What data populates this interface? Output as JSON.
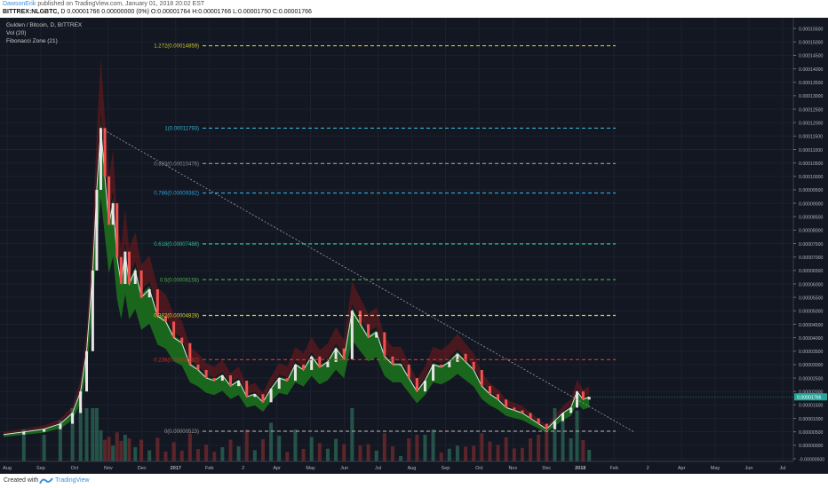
{
  "header": {
    "author": "DawsonErik",
    "published_text": "published on TradingView.com, January 01, 2018 20:02 EST",
    "symbol": "BITTREX:NLGBTC,",
    "ohlc_text": "D  0.00001766 0.00000000 (0%) O:0.00001764 H:0.00001766 L:0.00001750 C:0.00001766"
  },
  "legend": {
    "title": "Gulden / Bitcoin, D, BITTREX",
    "vol": "Vol (20)",
    "fib": "Fibonacci Zone (21)"
  },
  "footer": {
    "created_with": "Created with",
    "brand": "TradingView"
  },
  "colors": {
    "background": "#131722",
    "up": "#e6e6e6",
    "down": "#ef5350",
    "zone_green": "#1b7a1b",
    "zone_red": "#8b1a1a",
    "trendline": "#9aa0aa"
  },
  "chart_data": {
    "type": "line",
    "x_ticks": [
      "Aug",
      "Sep",
      "Oct",
      "Nov",
      "Dec",
      "2017",
      "Feb",
      "2",
      "Apr",
      "May",
      "Jun",
      "Jul",
      "Aug",
      "Sep",
      "Oct",
      "Nov",
      "Dec",
      "2018",
      "Feb",
      "2",
      "Apr",
      "May",
      "Jun",
      "Jul"
    ],
    "y_ticks": [
      "0.00015500",
      "0.00015000",
      "0.00014500",
      "0.00014000",
      "0.00013500",
      "0.00013000",
      "0.00012500",
      "0.00012000",
      "0.00011500",
      "0.00011000",
      "0.00010500",
      "0.00010000",
      "0.00009500",
      "0.00009000",
      "0.00008500",
      "0.00008000",
      "0.00007500",
      "0.00007000",
      "0.00006500",
      "0.00006000",
      "0.00005500",
      "0.00005000",
      "0.00004500",
      "0.00004000",
      "0.00003500",
      "0.00003000",
      "0.00002500",
      "0.00002000",
      "0.00001500",
      "0.00001000",
      "0.00000500",
      "0.00000000",
      "-0.00000500"
    ],
    "ylim": [
      -6e-06,
      0.000159
    ],
    "fib_levels": [
      {
        "label": "1.272(0.00014859)",
        "value": 0.00014859,
        "color": "#c8c832"
      },
      {
        "label": "1(0.00011793)",
        "value": 0.00011793,
        "color": "#36b1c8"
      },
      {
        "label": "0.883(0.00010476)",
        "value": 0.00010476,
        "color": "#8c8c8c"
      },
      {
        "label": "0.786(0.00009382)",
        "value": 9.382e-05,
        "color": "#2aa3d6"
      },
      {
        "label": "0.618(0.00007488)",
        "value": 7.488e-05,
        "color": "#2fbf9c"
      },
      {
        "label": "0.5(0.00006158)",
        "value": 6.158e-05,
        "color": "#4caf50"
      },
      {
        "label": "0.382(0.00004828)",
        "value": 4.828e-05,
        "color": "#d8d832"
      },
      {
        "label": "0.236(0.00003182)",
        "value": 3.182e-05,
        "color": "#c8322d"
      },
      {
        "label": "0(0.00000523)",
        "value": 5.23e-06,
        "color": "#9a9a9a"
      }
    ],
    "price_series": {
      "name": "NLGBTC",
      "points": [
        [
          0,
          4e-06
        ],
        [
          10,
          5e-06
        ],
        [
          20,
          6e-06
        ],
        [
          28,
          8e-06
        ],
        [
          34,
          1.2e-05
        ],
        [
          38,
          2e-05
        ],
        [
          41,
          3.5e-05
        ],
        [
          44,
          6.5e-05
        ],
        [
          46,
          9.5e-05
        ],
        [
          48,
          0.000118
        ],
        [
          50,
          0.0001
        ],
        [
          52,
          8.2e-05
        ],
        [
          54,
          9e-05
        ],
        [
          56,
          7e-05
        ],
        [
          58,
          6e-05
        ],
        [
          60,
          7.2e-05
        ],
        [
          62,
          6e-05
        ],
        [
          65,
          6.5e-05
        ],
        [
          68,
          5.5e-05
        ],
        [
          72,
          5.8e-05
        ],
        [
          76,
          4.8e-05
        ],
        [
          80,
          4.6e-05
        ],
        [
          84,
          4e-05
        ],
        [
          88,
          3.8e-05
        ],
        [
          92,
          3e-05
        ],
        [
          96,
          2.8e-05
        ],
        [
          100,
          2.5e-05
        ],
        [
          104,
          2.4e-05
        ],
        [
          108,
          2.6e-05
        ],
        [
          112,
          2.2e-05
        ],
        [
          116,
          2.4e-05
        ],
        [
          120,
          1.8e-05
        ],
        [
          124,
          1.9e-05
        ],
        [
          128,
          1.6e-05
        ],
        [
          132,
          2.1e-05
        ],
        [
          136,
          2.5e-05
        ],
        [
          140,
          2.4e-05
        ],
        [
          144,
          3e-05
        ],
        [
          148,
          2.8e-05
        ],
        [
          152,
          3.3e-05
        ],
        [
          156,
          2.9e-05
        ],
        [
          160,
          3.1e-05
        ],
        [
          164,
          3.6e-05
        ],
        [
          168,
          3.2e-05
        ],
        [
          172,
          5e-05
        ],
        [
          176,
          4.5e-05
        ],
        [
          180,
          4e-05
        ],
        [
          184,
          4.2e-05
        ],
        [
          188,
          3.3e-05
        ],
        [
          192,
          3e-05
        ],
        [
          196,
          3e-05
        ],
        [
          200,
          2.5e-05
        ],
        [
          204,
          2e-05
        ],
        [
          208,
          2.4e-05
        ],
        [
          212,
          3e-05
        ],
        [
          216,
          2.9e-05
        ],
        [
          220,
          3.1e-05
        ],
        [
          224,
          3.4e-05
        ],
        [
          228,
          3.1e-05
        ],
        [
          232,
          2.8e-05
        ],
        [
          236,
          2.2e-05
        ],
        [
          240,
          1.9e-05
        ],
        [
          244,
          1.7e-05
        ],
        [
          248,
          1.4e-05
        ],
        [
          252,
          1.3e-05
        ],
        [
          256,
          1.2e-05
        ],
        [
          260,
          1e-05
        ],
        [
          264,
          8e-06
        ],
        [
          268,
          6e-06
        ],
        [
          272,
          9e-06
        ],
        [
          276,
          1.2e-05
        ],
        [
          280,
          1.4e-05
        ],
        [
          283,
          2e-05
        ],
        [
          286,
          1.7e-05
        ],
        [
          289,
          1.8e-05
        ]
      ]
    },
    "trendline": {
      "from": [
        48,
        0.0001179
      ],
      "to": [
        311,
        5e-06
      ]
    },
    "x_range": [
      0,
      388
    ]
  }
}
